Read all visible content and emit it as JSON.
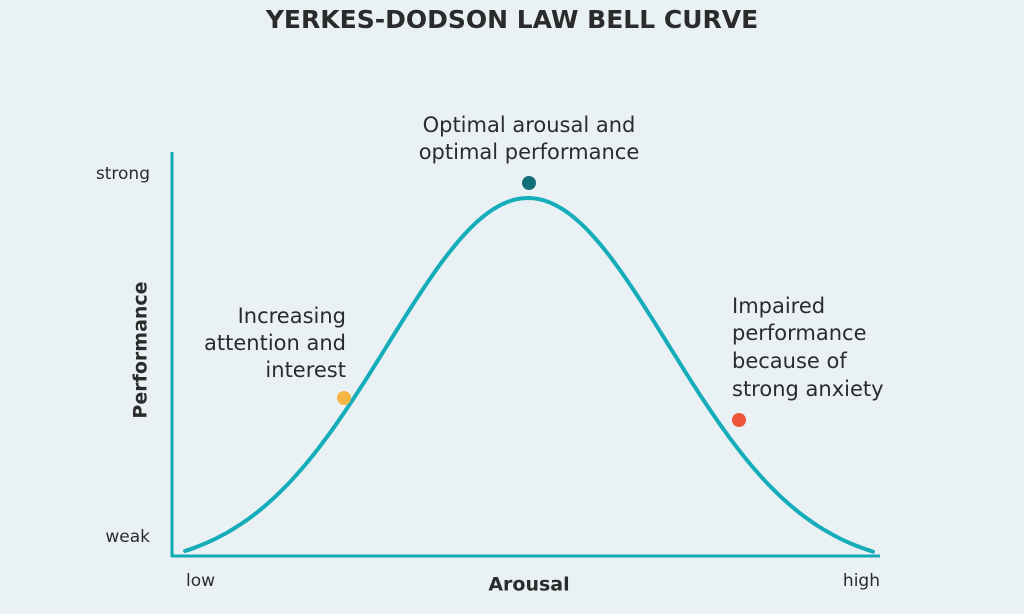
{
  "title": "YERKES-DODSON LAW BELL CURVE",
  "axes": {
    "y_label": "Performance",
    "x_label": "Arousal",
    "y_high": "strong",
    "y_low": "weak",
    "x_low": "low",
    "x_high": "high"
  },
  "annotations": [
    {
      "lines": [
        "Optimal arousal and",
        "optimal performance"
      ]
    },
    {
      "lines": [
        "Increasing",
        "attention and",
        "interest"
      ]
    },
    {
      "lines": [
        "Impaired",
        "performance",
        "because of",
        "strong anxiety"
      ]
    }
  ]
}
